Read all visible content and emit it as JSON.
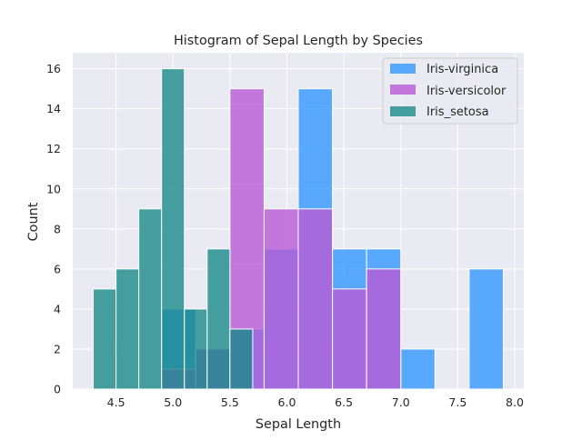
{
  "chart_data": {
    "type": "bar",
    "title": "Histogram of Sepal Length by Species",
    "xlabel": "Sepal Length",
    "ylabel": "Count",
    "xlim": [
      4.12,
      8.08
    ],
    "ylim": [
      0,
      16.8
    ],
    "xticks": [
      4.5,
      5.0,
      5.5,
      6.0,
      6.5,
      7.0,
      7.5,
      8.0
    ],
    "xtick_labels": [
      "4.5",
      "5.0",
      "5.5",
      "6.0",
      "6.5",
      "7.0",
      "7.5",
      "8.0"
    ],
    "yticks": [
      0,
      2,
      4,
      6,
      8,
      10,
      12,
      14,
      16
    ],
    "ytick_labels": [
      "0",
      "2",
      "4",
      "6",
      "8",
      "10",
      "12",
      "14",
      "16"
    ],
    "grid": true,
    "legend_position": "top-right",
    "series": [
      {
        "name": "Iris-virginica",
        "color": "#3399ff",
        "bin_edges": [
          4.9,
          5.2,
          5.5,
          5.8,
          6.1,
          6.4,
          6.7,
          7.0,
          7.3,
          7.6,
          7.9
        ],
        "counts": [
          4,
          2,
          3,
          7,
          15,
          7,
          7,
          2,
          0,
          6
        ]
      },
      {
        "name": "Iris-versicolor",
        "color": "#b95ad6",
        "bin_edges": [
          4.9,
          5.2,
          5.5,
          5.8,
          6.1,
          6.4,
          6.7,
          7.0
        ],
        "counts": [
          1,
          2,
          15,
          9,
          9,
          5,
          6
        ]
      },
      {
        "name": "Iris_setosa",
        "color": "#1a8a8a",
        "bin_edges": [
          4.3,
          4.5,
          4.7,
          4.9,
          5.1,
          5.3,
          5.5,
          5.7,
          5.8
        ],
        "counts": [
          5,
          6,
          9,
          16,
          4,
          7,
          3,
          0
        ]
      }
    ]
  }
}
